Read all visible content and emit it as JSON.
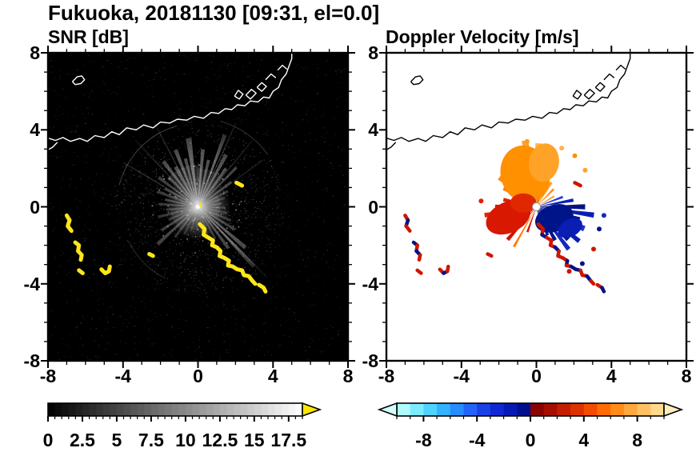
{
  "title": "Fukuoka, 20181130 [09:31, el=0.0]",
  "panels": {
    "left": {
      "label": "SNR [dB]"
    },
    "right": {
      "label": "Doppler Velocity [m/s]"
    }
  },
  "axis": {
    "min": -8,
    "max": 8,
    "minor_step": 1,
    "major_ticks": [
      -8,
      -4,
      0,
      4,
      8
    ],
    "tick_labels": [
      "-8",
      "-4",
      "0",
      "4",
      "8"
    ]
  },
  "colorbars": {
    "snr": {
      "range": [
        0,
        18.5
      ],
      "segment": 0.5,
      "minor_step": 0.5,
      "major_ticks": [
        0,
        2.5,
        5,
        7.5,
        10,
        12.5,
        15,
        17.5
      ],
      "tick_labels": [
        "0",
        "2.5",
        "5",
        "7.5",
        "10",
        "12.5",
        "15",
        "17.5"
      ],
      "colormap": [
        [
          0,
          "#000000"
        ],
        [
          18.5,
          "#ffffff"
        ]
      ],
      "over_arrow_color": "#ffe600"
    },
    "velocity": {
      "range": [
        -10,
        10
      ],
      "segment": 1,
      "minor_step": 1,
      "major_ticks": [
        -8,
        -4,
        0,
        4,
        8
      ],
      "tick_labels": [
        "-8",
        "-4",
        "0",
        "4",
        "8"
      ],
      "colormap": [
        [
          -10,
          "#c8ffff"
        ],
        [
          -9,
          "#96f5ff"
        ],
        [
          -8,
          "#64e1ff"
        ],
        [
          -7,
          "#3cc3ff"
        ],
        [
          -6,
          "#28a0ff"
        ],
        [
          -5,
          "#2878ff"
        ],
        [
          -4,
          "#1e50f0"
        ],
        [
          -3,
          "#1432dc"
        ],
        [
          -2,
          "#0a1ec8"
        ],
        [
          -1,
          "#0014a0"
        ],
        [
          -0.01,
          "#000a7d"
        ],
        [
          0.01,
          "#7d0000"
        ],
        [
          1,
          "#960a00"
        ],
        [
          2,
          "#b41400"
        ],
        [
          3,
          "#d22800"
        ],
        [
          4,
          "#e63c00"
        ],
        [
          5,
          "#ff5a00"
        ],
        [
          6,
          "#ff7d0a"
        ],
        [
          7,
          "#ff9b28"
        ],
        [
          8,
          "#ffb450"
        ],
        [
          9,
          "#ffcd78"
        ],
        [
          10,
          "#ffe6a0"
        ]
      ],
      "under_arrow_color": "#d2ffff",
      "over_arrow_color": "#ffedbe"
    }
  },
  "coastline": {
    "main": [
      [
        -8.1,
        3.6
      ],
      [
        -7.6,
        3.45
      ],
      [
        -7.2,
        3.6
      ],
      [
        -6.8,
        3.4
      ],
      [
        -6.3,
        3.55
      ],
      [
        -5.9,
        3.4
      ],
      [
        -5.5,
        3.7
      ],
      [
        -5.0,
        3.6
      ],
      [
        -4.6,
        3.9
      ],
      [
        -4.2,
        3.75
      ],
      [
        -3.8,
        4.1
      ],
      [
        -3.3,
        4.0
      ],
      [
        -2.9,
        4.25
      ],
      [
        -2.4,
        4.1
      ],
      [
        -2.0,
        4.4
      ],
      [
        -1.5,
        4.35
      ],
      [
        -1.1,
        4.55
      ],
      [
        -0.6,
        4.5
      ],
      [
        -0.2,
        4.7
      ],
      [
        0.3,
        4.6
      ],
      [
        0.7,
        4.9
      ],
      [
        1.1,
        4.85
      ],
      [
        1.45,
        5.1
      ],
      [
        1.8,
        5.05
      ],
      [
        2.1,
        5.3
      ],
      [
        2.5,
        5.25
      ],
      [
        2.8,
        5.5
      ],
      [
        3.2,
        5.45
      ],
      [
        3.5,
        5.7
      ],
      [
        3.8,
        5.65
      ],
      [
        4.0,
        6.0
      ],
      [
        4.3,
        6.2
      ],
      [
        4.45,
        6.6
      ],
      [
        4.7,
        6.9
      ],
      [
        4.85,
        7.3
      ],
      [
        5.0,
        7.7
      ],
      [
        5.0,
        8.1
      ]
    ],
    "spur": [
      [
        -8.1,
        2.9
      ],
      [
        -7.75,
        3.1
      ],
      [
        -7.5,
        3.35
      ]
    ],
    "islands": [
      [
        [
          -6.7,
          6.5
        ],
        [
          -6.45,
          6.75
        ],
        [
          -6.2,
          6.8
        ],
        [
          -6.05,
          6.6
        ],
        [
          -6.25,
          6.4
        ],
        [
          -6.55,
          6.35
        ],
        [
          -6.7,
          6.5
        ]
      ]
    ],
    "breakwaters": [
      [
        [
          1.95,
          5.75
        ],
        [
          2.15,
          6.05
        ],
        [
          2.4,
          5.85
        ],
        [
          2.2,
          5.6
        ],
        [
          1.95,
          5.75
        ]
      ],
      [
        [
          2.55,
          5.8
        ],
        [
          2.85,
          6.1
        ],
        [
          3.1,
          5.9
        ],
        [
          2.8,
          5.6
        ],
        [
          2.55,
          5.8
        ]
      ],
      [
        [
          3.15,
          6.2
        ],
        [
          3.4,
          6.45
        ],
        [
          3.65,
          6.25
        ],
        [
          3.4,
          6.0
        ],
        [
          3.15,
          6.2
        ]
      ],
      [
        [
          3.6,
          6.6
        ],
        [
          3.9,
          6.9
        ],
        [
          4.15,
          6.7
        ]
      ],
      [
        [
          4.25,
          7.1
        ],
        [
          4.5,
          7.35
        ],
        [
          4.75,
          7.15
        ]
      ]
    ]
  },
  "clutter_chains": [
    [
      [
        -7.0,
        -0.45
      ],
      [
        -6.85,
        -0.7
      ],
      [
        -6.95,
        -1.0
      ],
      [
        -6.75,
        -1.25
      ]
    ],
    [
      [
        -6.55,
        -1.85
      ],
      [
        -6.35,
        -2.0
      ],
      [
        -6.4,
        -2.3
      ],
      [
        -6.2,
        -2.5
      ],
      [
        -6.25,
        -2.75
      ]
    ],
    [
      [
        -6.35,
        -3.3
      ],
      [
        -6.15,
        -3.45
      ]
    ],
    [
      [
        -5.15,
        -3.25
      ],
      [
        -4.95,
        -3.45
      ],
      [
        -4.75,
        -3.35
      ],
      [
        -4.7,
        -3.1
      ]
    ],
    [
      [
        0.1,
        -0.9
      ],
      [
        0.35,
        -1.15
      ],
      [
        0.3,
        -1.45
      ],
      [
        0.55,
        -1.6
      ],
      [
        0.8,
        -1.75
      ],
      [
        0.75,
        -2.0
      ],
      [
        1.0,
        -2.1
      ],
      [
        1.2,
        -2.3
      ],
      [
        1.15,
        -2.55
      ],
      [
        1.4,
        -2.65
      ],
      [
        1.65,
        -2.8
      ],
      [
        1.6,
        -3.05
      ],
      [
        1.85,
        -3.1
      ],
      [
        2.1,
        -3.25
      ],
      [
        2.35,
        -3.3
      ],
      [
        2.45,
        -3.55
      ],
      [
        2.7,
        -3.6
      ],
      [
        2.9,
        -3.85
      ],
      [
        3.05,
        -4.0
      ]
    ],
    [
      [
        3.25,
        -4.05
      ],
      [
        3.5,
        -4.2
      ],
      [
        3.6,
        -4.4
      ]
    ],
    [
      [
        2.05,
        1.25
      ],
      [
        2.35,
        1.1
      ]
    ],
    [
      [
        -2.6,
        -2.45
      ],
      [
        -2.4,
        -2.55
      ]
    ]
  ],
  "chart_data": [
    {
      "type": "heatmap",
      "subtype": "radar-ppi",
      "title": "SNR [dB]",
      "xlabel": "",
      "ylabel": "",
      "xlim": [
        -8,
        8
      ],
      "ylim": [
        -8,
        8
      ],
      "radar_center": [
        0,
        0
      ],
      "colorbar_range": [
        0,
        18.5
      ],
      "colorbar_ticks": [
        0,
        2.5,
        5,
        7.5,
        10,
        12.5,
        15,
        17.5
      ],
      "background": "#000000",
      "features": {
        "beams": [
          [
            352,
            3.6,
            5,
            0.5
          ],
          [
            345,
            2.6,
            4,
            0.4
          ],
          [
            338,
            3.2,
            4,
            0.45
          ],
          [
            330,
            2.4,
            5,
            0.38
          ],
          [
            322,
            3.0,
            4,
            0.42
          ],
          [
            314,
            2.2,
            4,
            0.35
          ],
          [
            306,
            2.6,
            4,
            0.3
          ],
          [
            298,
            2.0,
            4,
            0.3
          ],
          [
            290,
            2.3,
            4,
            0.28
          ],
          [
            282,
            1.8,
            4,
            0.3
          ],
          [
            274,
            2.1,
            4,
            0.26
          ],
          [
            265,
            1.7,
            4,
            0.25
          ],
          [
            256,
            2.2,
            4,
            0.24
          ],
          [
            247,
            1.7,
            4,
            0.22
          ],
          [
            238,
            2.3,
            4,
            0.3
          ],
          [
            228,
            2.9,
            4,
            0.34
          ],
          [
            218,
            2.0,
            4,
            0.25
          ],
          [
            207,
            1.6,
            4,
            0.2
          ],
          [
            196,
            1.3,
            4,
            0.18
          ],
          [
            184,
            1.2,
            4,
            0.15
          ],
          [
            5,
            3.0,
            4,
            0.45
          ],
          [
            13,
            2.5,
            4,
            0.4
          ],
          [
            21,
            4.0,
            3,
            0.5
          ],
          [
            29,
            3.1,
            4,
            0.42
          ],
          [
            37,
            2.5,
            4,
            0.38
          ],
          [
            45,
            2.9,
            3,
            0.35
          ],
          [
            54,
            2.2,
            4,
            0.3
          ],
          [
            63,
            1.8,
            4,
            0.26
          ],
          [
            72,
            1.5,
            4,
            0.24
          ],
          [
            82,
            1.3,
            4,
            0.22
          ],
          [
            92,
            1.4,
            4,
            0.2
          ],
          [
            102,
            1.6,
            4,
            0.22
          ],
          [
            112,
            1.9,
            4,
            0.25
          ],
          [
            121,
            2.3,
            4,
            0.3
          ],
          [
            130,
            3.3,
            4,
            0.42
          ],
          [
            136,
            4.3,
            3,
            0.5
          ],
          [
            143,
            2.7,
            4,
            0.35
          ],
          [
            151,
            1.9,
            4,
            0.26
          ],
          [
            160,
            1.5,
            4,
            0.2
          ],
          [
            170,
            1.3,
            4,
            0.16
          ],
          [
            300,
            4.6,
            1,
            0.3
          ],
          [
            316,
            4.8,
            1,
            0.25
          ],
          [
            332,
            5.0,
            1,
            0.3
          ],
          [
            25,
            4.8,
            1,
            0.3
          ],
          [
            40,
            4.5,
            1,
            0.22
          ],
          [
            55,
            4.2,
            1,
            0.2
          ],
          [
            135,
            5.2,
            1,
            0.35
          ],
          [
            340,
            2.2,
            50,
            0.15
          ],
          [
            20,
            2.0,
            45,
            0.13
          ],
          [
            90,
            1.2,
            60,
            0.12
          ],
          [
            240,
            1.5,
            50,
            0.1
          ]
        ],
        "ring_arcs": [
          [
            285,
            345,
            4.35,
            0.3
          ],
          [
            15,
            55,
            4.6,
            0.25
          ],
          [
            205,
            245,
            4.1,
            0.2
          ]
        ],
        "clutter_color": "#ffe619",
        "coastline_color": "#ffffff"
      }
    },
    {
      "type": "heatmap",
      "subtype": "radar-ppi",
      "title": "Doppler Velocity [m/s]",
      "xlabel": "",
      "ylabel": "",
      "xlim": [
        -8,
        8
      ],
      "ylim": [
        -8,
        8
      ],
      "radar_center": [
        0,
        0
      ],
      "colorbar_range": [
        -10,
        10
      ],
      "colorbar_ticks": [
        -8,
        -4,
        0,
        4,
        8
      ],
      "background": "#ffffff",
      "features": {
        "wedges": [
          [
            300,
            2.0,
            8,
            "#ff7800"
          ],
          [
            308,
            2.5,
            7,
            "#ff8c14"
          ],
          [
            316,
            2.1,
            6,
            "#ff9a1e"
          ],
          [
            323,
            2.9,
            7,
            "#ff8c00"
          ],
          [
            330,
            2.3,
            6,
            "#ffa528"
          ],
          [
            337,
            3.2,
            7,
            "#ff9000"
          ],
          [
            344,
            2.6,
            6,
            "#ffae3c"
          ],
          [
            350,
            3.5,
            6,
            "#ffa030"
          ],
          [
            356,
            3.0,
            6,
            "#ff8c00"
          ],
          [
            2,
            3.3,
            6,
            "#ffb44a"
          ],
          [
            8,
            2.7,
            6,
            "#ff9a1e"
          ],
          [
            15,
            2.2,
            6,
            "#ffae3c"
          ],
          [
            23,
            1.8,
            7,
            "#ff9000"
          ],
          [
            32,
            1.5,
            6,
            "#ffa030"
          ],
          [
            45,
            1.3,
            5,
            "#ff8c14"
          ],
          [
            60,
            1.1,
            5,
            "#ffa030"
          ],
          [
            88,
            2.4,
            2.5,
            "#ff8c00"
          ],
          [
            210,
            2.4,
            3,
            "#ff7800"
          ],
          [
            250,
            2.5,
            8,
            "#e02000"
          ],
          [
            240,
            2.1,
            6,
            "#cc1400"
          ],
          [
            261,
            2.8,
            5,
            "#e62600"
          ],
          [
            232,
            1.7,
            6,
            "#d81800"
          ],
          [
            222,
            2.3,
            5,
            "#cc1400"
          ],
          [
            200,
            1.4,
            5,
            "#d81800"
          ],
          [
            345,
            1.3,
            9,
            "#dc2800"
          ],
          [
            15,
            1.0,
            7,
            "#e03000"
          ],
          [
            270,
            2.2,
            6,
            "#d81800"
          ],
          [
            282,
            1.8,
            6,
            "#e02000"
          ],
          [
            70,
            1.5,
            5,
            "#2840d2"
          ],
          [
            80,
            2.0,
            5,
            "#0a1eb4"
          ],
          [
            90,
            2.6,
            6,
            "#001489"
          ],
          [
            98,
            3.1,
            5,
            "#0a1eb4"
          ],
          [
            106,
            2.4,
            6,
            "#001489"
          ],
          [
            114,
            2.8,
            6,
            "#1e32c8"
          ],
          [
            121,
            2.2,
            7,
            "#001489"
          ],
          [
            128,
            2.9,
            5,
            "#0a1eb4"
          ],
          [
            135,
            2.4,
            6,
            "#001489"
          ],
          [
            142,
            2.8,
            5,
            "#1428be"
          ],
          [
            150,
            2.0,
            6,
            "#001489"
          ],
          [
            158,
            1.6,
            6,
            "#0a1eb4"
          ],
          [
            166,
            1.2,
            5,
            "#001489"
          ]
        ],
        "blobs": [
          [
            -0.6,
            1.7,
            1.3,
            1.5,
            -15,
            "#ff9000"
          ],
          [
            0.4,
            2.3,
            0.8,
            1.0,
            10,
            "#ffa328"
          ],
          [
            -1.5,
            -0.55,
            1.25,
            0.8,
            -25,
            "#d81800"
          ],
          [
            -0.7,
            0.2,
            0.7,
            0.5,
            0,
            "#e02800"
          ],
          [
            0.95,
            -0.6,
            1.05,
            0.7,
            -20,
            "#001489"
          ],
          [
            1.8,
            -1.1,
            0.7,
            0.45,
            -30,
            "#0a1eb4"
          ]
        ],
        "dots": [
          [
            3.35,
            -1.15,
            "#001489"
          ],
          [
            3.05,
            -2.2,
            "#cf1500"
          ],
          [
            2.45,
            -2.95,
            "#001489"
          ],
          [
            1.75,
            -3.35,
            "#cf1500"
          ],
          [
            3.6,
            -0.45,
            "#1428be"
          ],
          [
            -2.95,
            0.3,
            "#e02000"
          ],
          [
            2.05,
            2.65,
            "#ff9000"
          ],
          [
            1.35,
            3.05,
            "#ffb44a"
          ],
          [
            2.6,
            1.9,
            "#ffa030"
          ],
          [
            -0.5,
            3.4,
            "#ff9a1e"
          ]
        ],
        "clutter_colors": [
          "#cf1500",
          "#001489"
        ],
        "center_dot_color": "#ffffff",
        "coastline_color": "#000000"
      }
    }
  ]
}
